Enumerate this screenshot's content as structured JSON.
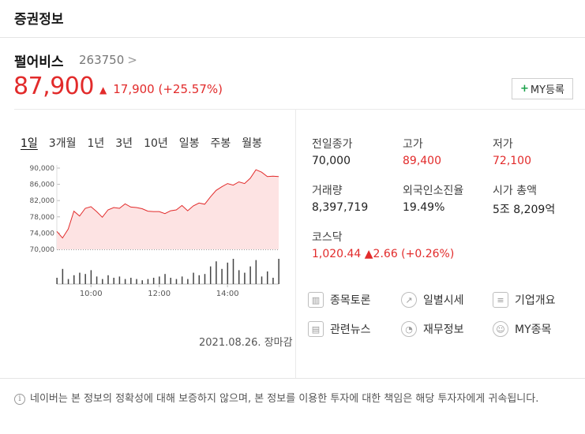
{
  "header": {
    "title": "증권정보"
  },
  "stock": {
    "name": "펄어비스",
    "code": "263750",
    "code_chevron": ">",
    "price": "87,900",
    "change_arrow": "▲",
    "change_value": "17,900",
    "change_pct": "(+25.57%)",
    "my_button": "MY등록",
    "my_button_plus": "+"
  },
  "tabs": [
    "1일",
    "3개월",
    "1년",
    "3년",
    "10년",
    "일봉",
    "주봉",
    "월봉"
  ],
  "chart_data": {
    "type": "area",
    "y_ticks": [
      "90,000",
      "86,000",
      "82,000",
      "78,000",
      "74,000",
      "70,000"
    ],
    "x_ticks": [
      "10:00",
      "12:00",
      "14:00"
    ],
    "ylim": [
      70000,
      90000
    ],
    "baseline": 70000,
    "x": [
      "09:00",
      "09:10",
      "09:20",
      "09:30",
      "09:40",
      "09:50",
      "10:00",
      "10:10",
      "10:20",
      "10:30",
      "10:40",
      "10:50",
      "11:00",
      "11:10",
      "11:20",
      "11:30",
      "11:40",
      "11:50",
      "12:00",
      "12:10",
      "12:20",
      "12:30",
      "12:40",
      "12:50",
      "13:00",
      "13:10",
      "13:20",
      "13:30",
      "13:40",
      "13:50",
      "14:00",
      "14:10",
      "14:20",
      "14:30",
      "14:40",
      "14:50",
      "15:00",
      "15:10",
      "15:20",
      "15:30"
    ],
    "values": [
      74400,
      72800,
      75000,
      79400,
      78200,
      80100,
      80500,
      79300,
      77900,
      79700,
      80300,
      80100,
      81200,
      80400,
      80300,
      80000,
      79400,
      79300,
      79300,
      78800,
      79500,
      79700,
      80800,
      79500,
      80700,
      81400,
      81100,
      82900,
      84500,
      85400,
      86200,
      85800,
      86600,
      86200,
      87500,
      89600,
      89000,
      87900,
      88000,
      87900
    ],
    "volume": [
      25,
      60,
      20,
      35,
      45,
      40,
      55,
      30,
      20,
      35,
      25,
      30,
      20,
      25,
      20,
      15,
      20,
      25,
      30,
      40,
      25,
      20,
      30,
      20,
      45,
      35,
      40,
      70,
      90,
      60,
      85,
      100,
      55,
      45,
      70,
      95,
      30,
      50,
      25,
      100
    ]
  },
  "date_label": "2021.08.26. 장마감",
  "stats": [
    {
      "label": "전일종가",
      "value": "70,000",
      "red": false
    },
    {
      "label": "고가",
      "value": "89,400",
      "red": true
    },
    {
      "label": "저가",
      "value": "72,100",
      "red": true
    },
    {
      "label": "거래량",
      "value": "8,397,719",
      "red": false
    },
    {
      "label": "외국인소진율",
      "value": "19.49%",
      "red": false
    },
    {
      "label": "시가 총액",
      "value": "5조 8,209억",
      "red": false
    },
    {
      "label": "코스닥",
      "value": "1,020.44 ▲2.66 (+0.26%)",
      "red": true
    }
  ],
  "links": [
    {
      "label": "종목토론",
      "icon": "discussion-chart-icon"
    },
    {
      "label": "일별시세",
      "icon": "trend-line-icon"
    },
    {
      "label": "기업개요",
      "icon": "company-list-icon"
    },
    {
      "label": "관련뉴스",
      "icon": "news-icon"
    },
    {
      "label": "재무정보",
      "icon": "pie-chart-icon"
    },
    {
      "label": "MY종목",
      "icon": "user-icon"
    }
  ],
  "notice": {
    "icon": "i",
    "text": "네이버는 본 정보의 정확성에 대해 보증하지 않으며, 본 정보를 이용한 투자에 대한 책임은 해당 투자자에게 귀속됩니다."
  },
  "colors": {
    "up": "#e22b2b",
    "accent_green": "#1aa14a",
    "area_fill": "#fde3e3"
  }
}
